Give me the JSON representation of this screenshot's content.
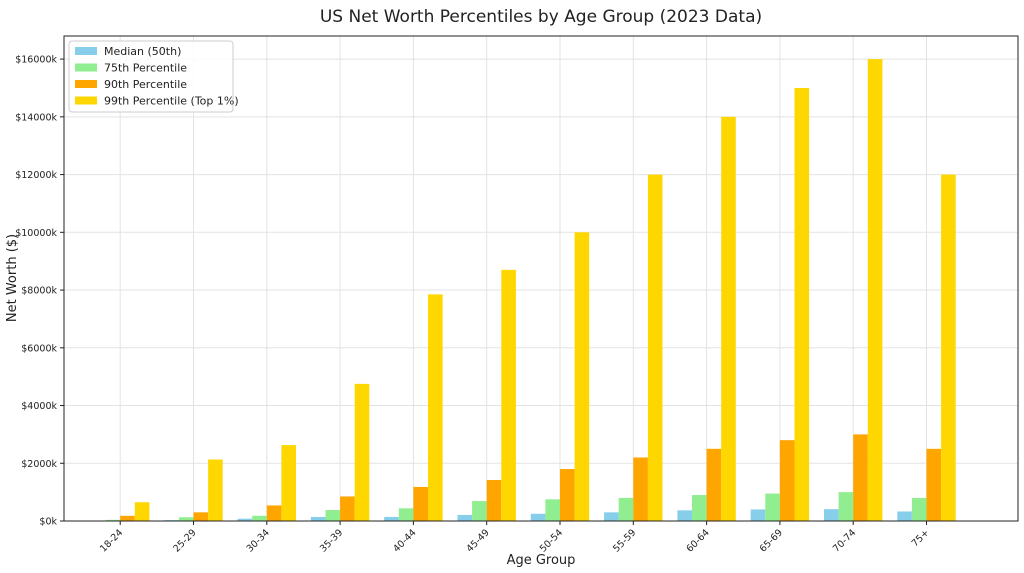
{
  "chart_data": {
    "type": "bar",
    "title": "US Net Worth Percentiles by Age Group (2023 Data)",
    "xlabel": "Age Group",
    "ylabel": "Net Worth ($)",
    "categories": [
      "18-24",
      "25-29",
      "30-34",
      "35-39",
      "40-44",
      "45-49",
      "50-54",
      "55-59",
      "60-64",
      "65-69",
      "70-74",
      "75+"
    ],
    "ylim": [
      0,
      16800
    ],
    "yticks": [
      0,
      2000,
      4000,
      6000,
      8000,
      10000,
      12000,
      14000,
      16000
    ],
    "ytick_labels": [
      "$0k",
      "$2000k",
      "$4000k",
      "$6000k",
      "$8000k",
      "$10000k",
      "$12000k",
      "$14000k",
      "$16000k"
    ],
    "grid": true,
    "legend_position": "top-left",
    "series": [
      {
        "name": "Median (50th)",
        "color": "#87CEEB",
        "values": [
          10,
          30,
          80,
          140,
          140,
          210,
          250,
          300,
          370,
          400,
          410,
          330
        ]
      },
      {
        "name": "75th Percentile",
        "color": "#90EE90",
        "values": [
          40,
          130,
          180,
          380,
          440,
          690,
          750,
          800,
          900,
          950,
          1000,
          800
        ]
      },
      {
        "name": "90th Percentile",
        "color": "#FFA500",
        "values": [
          180,
          300,
          540,
          850,
          1180,
          1420,
          1800,
          2200,
          2500,
          2800,
          3000,
          2500
        ]
      },
      {
        "name": "99th Percentile (Top 1%)",
        "color": "#FFD700",
        "values": [
          650,
          2130,
          2630,
          4750,
          7850,
          8700,
          10000,
          12000,
          14000,
          15000,
          16000,
          12000
        ]
      }
    ]
  }
}
